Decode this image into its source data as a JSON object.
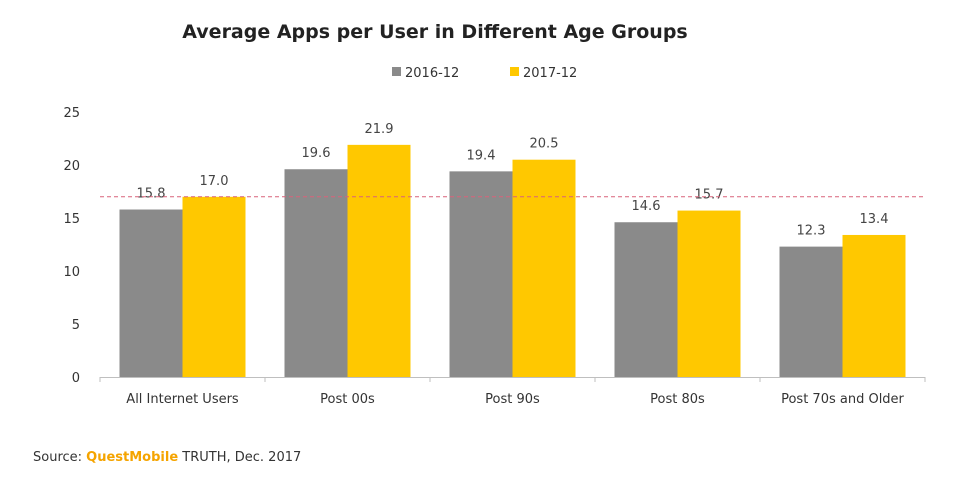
{
  "chart_data": {
    "type": "bar",
    "title": "Average Apps per User in Different Age Groups",
    "categories": [
      "All Internet Users",
      "Post 00s",
      "Post 90s",
      "Post 80s",
      "Post 70s and Older"
    ],
    "series": [
      {
        "name": "2016-12",
        "values": [
          15.8,
          19.6,
          19.4,
          14.6,
          12.3
        ],
        "color": "#8a8a8a"
      },
      {
        "name": "2017-12",
        "values": [
          17.0,
          21.9,
          20.5,
          15.7,
          13.4
        ],
        "color": "#ffc800"
      }
    ],
    "ylim": [
      0,
      25
    ],
    "yticks": [
      0,
      5,
      10,
      15,
      20,
      25
    ],
    "reference_line": {
      "value": 17.0,
      "color": "#d9627a",
      "style": "dashed"
    },
    "legend_position": "top-center",
    "grid": false
  },
  "source": {
    "prefix": "Source: ",
    "brand": "QuestMobile",
    "suffix": " TRUTH, Dec. 2017",
    "brand_color": "#f5a400"
  }
}
